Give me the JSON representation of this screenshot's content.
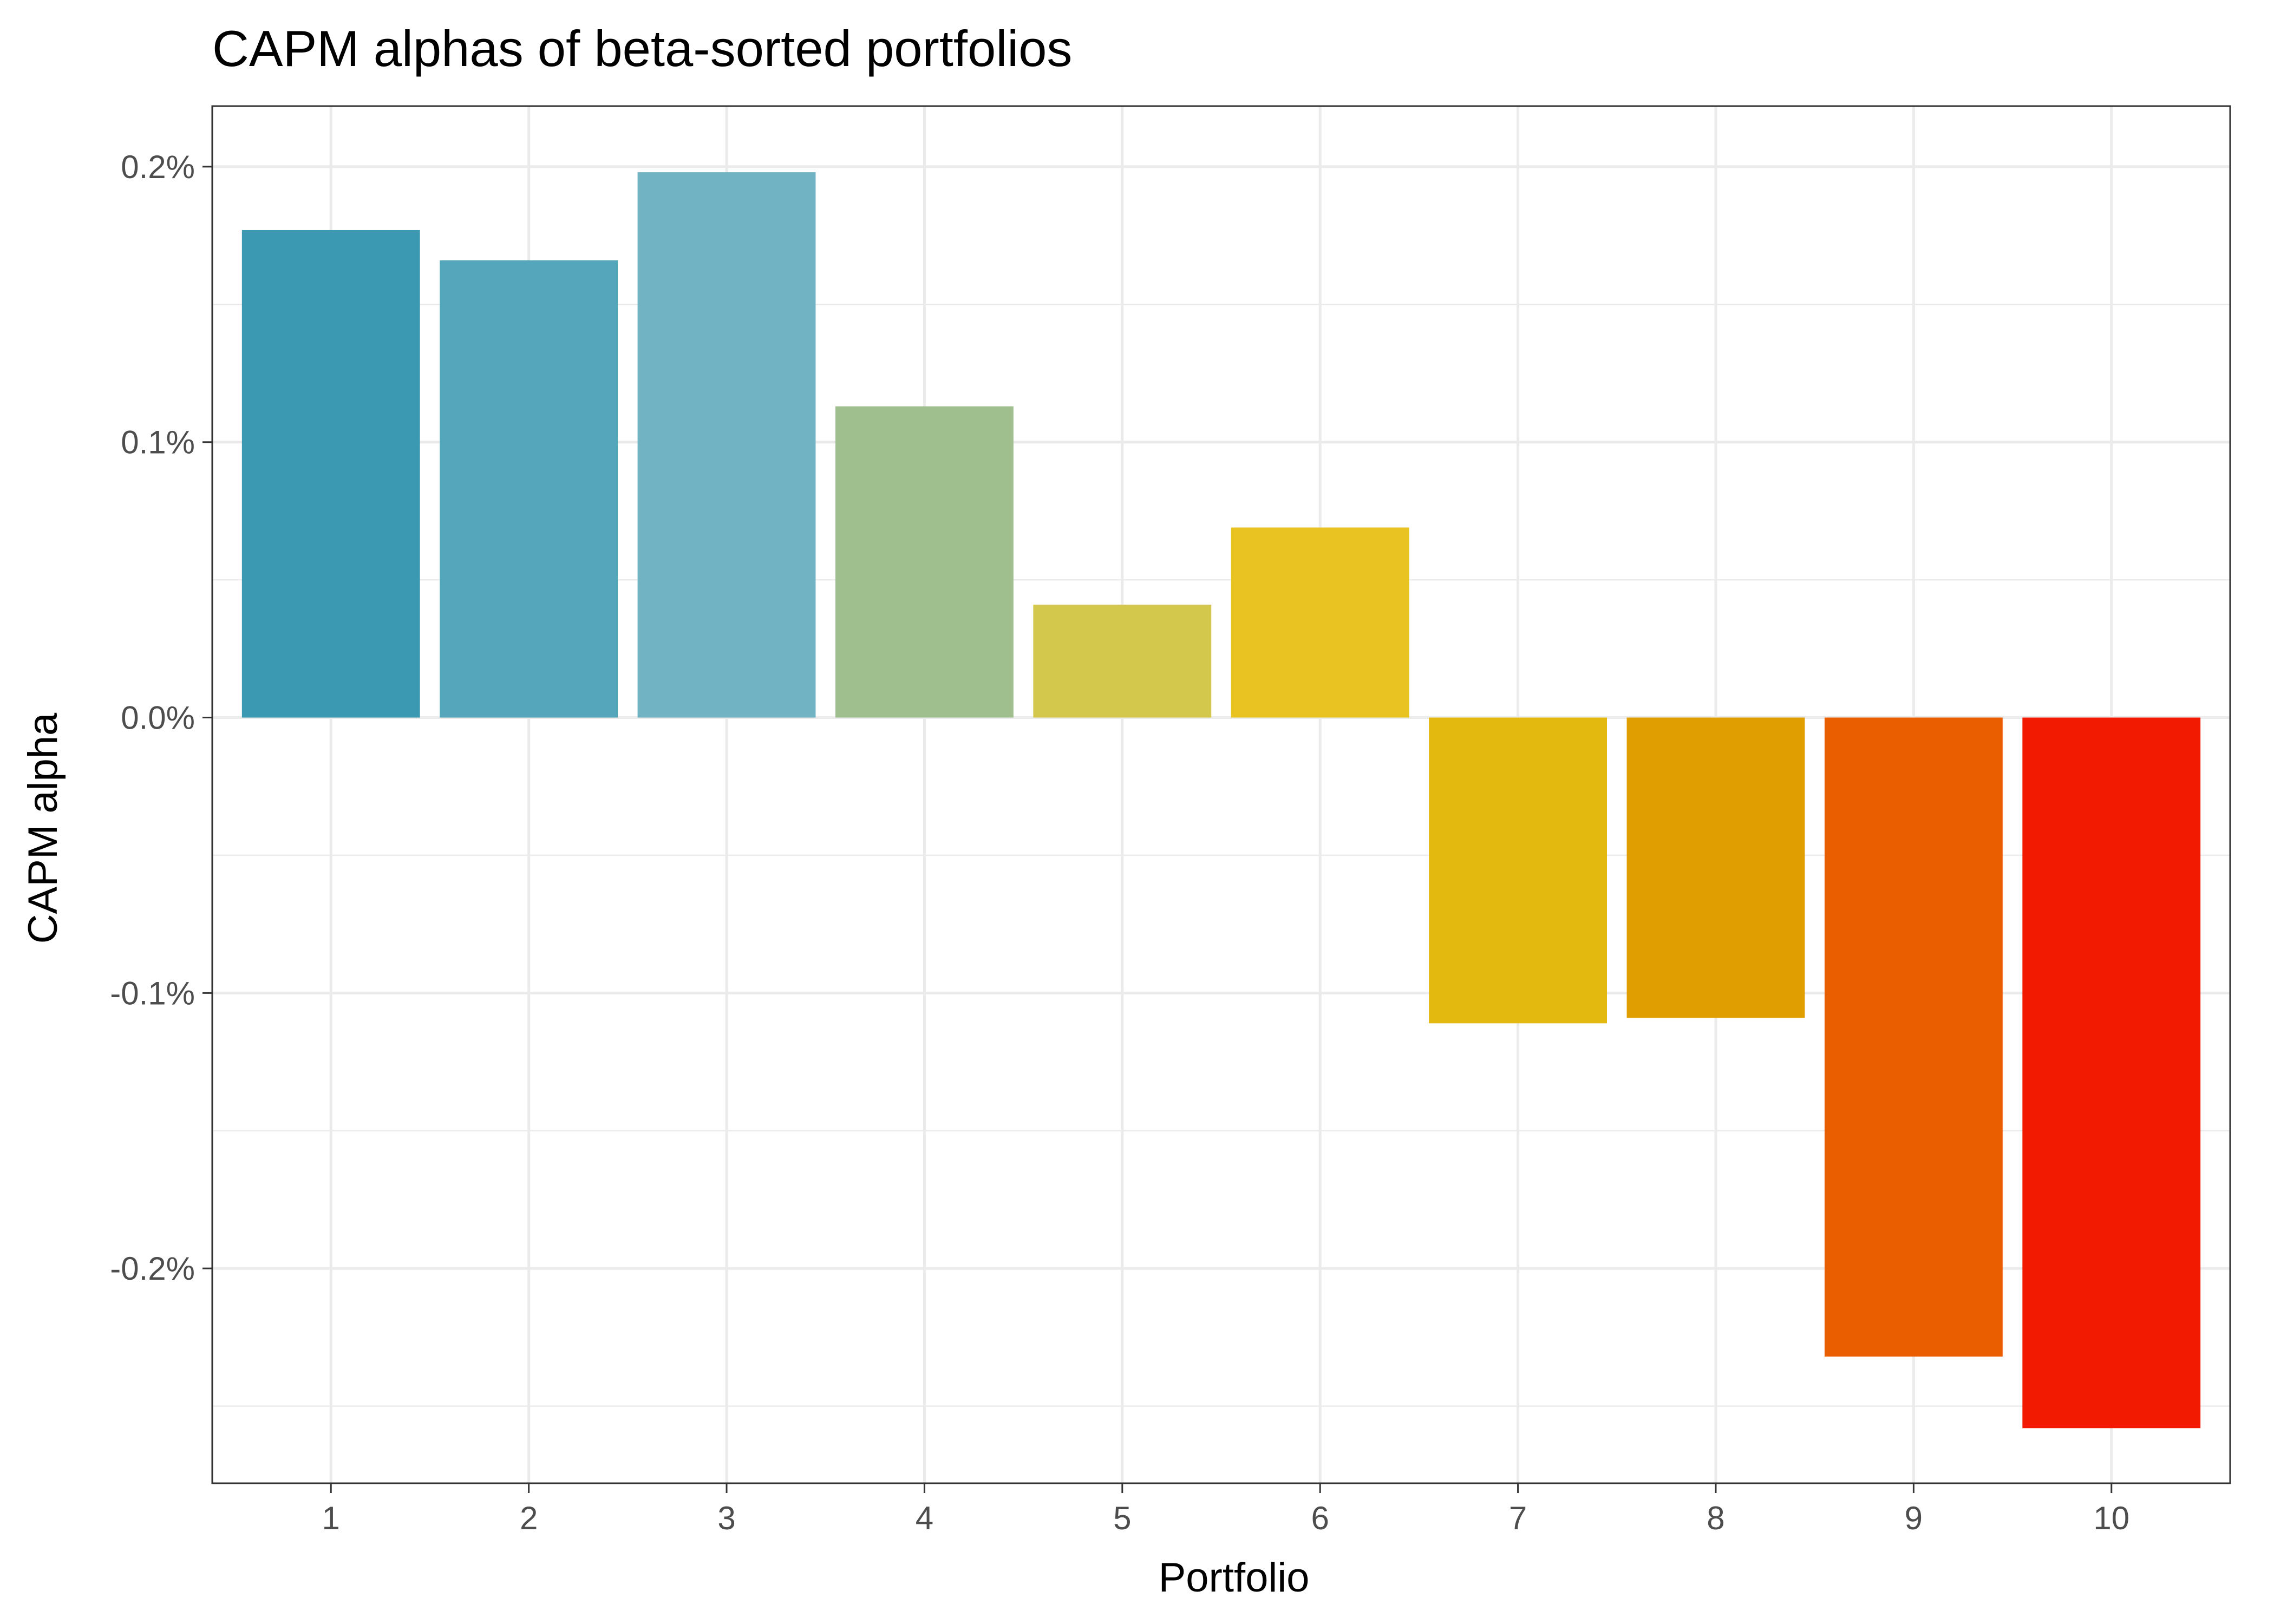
{
  "chart_data": {
    "type": "bar",
    "title": "CAPM alphas of beta-sorted portfolios",
    "xlabel": "Portfolio",
    "ylabel": "CAPM alpha",
    "categories": [
      "1",
      "2",
      "3",
      "4",
      "5",
      "6",
      "7",
      "8",
      "9",
      "10"
    ],
    "values": [
      0.00177,
      0.00166,
      0.00198,
      0.00113,
      0.00041,
      0.00069,
      -0.00111,
      -0.00109,
      -0.00232,
      -0.00258
    ],
    "ylim": [
      -0.00278,
      0.00222
    ],
    "y_ticks": [
      -0.002,
      -0.001,
      0.0,
      0.001,
      0.002
    ],
    "y_tick_labels": [
      "-0.2%",
      "-0.1%",
      "0.0%",
      "0.1%",
      "0.2%"
    ],
    "bar_colors": [
      "#3b9ab2",
      "#55a6ba",
      "#71b3c2",
      "#a0bf8f",
      "#d4c84c",
      "#e8c321",
      "#e3b910",
      "#e19e00",
      "#eb5e00",
      "#f21a00"
    ],
    "grid": true,
    "legend": "none"
  }
}
